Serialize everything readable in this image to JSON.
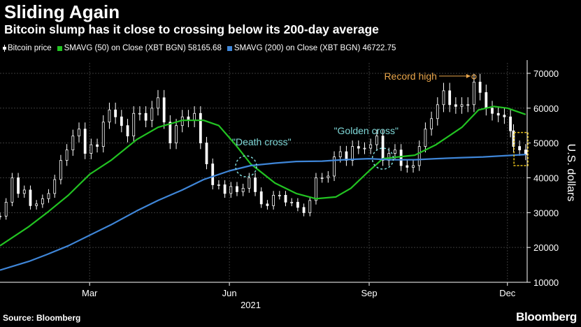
{
  "header": {
    "title": "Sliding Again",
    "subtitle": "Bitcoin slump has it close to crossing below its 200-day average"
  },
  "legend": {
    "items": [
      {
        "label": "Bitcoin price",
        "color": "#ffffff"
      },
      {
        "label": "SMAVG (50)  on Close (XBT BGN) 58165.68",
        "color": "#22c322"
      },
      {
        "label": "SMAVG (200)  on Close (XBT BGN) 46722.75",
        "color": "#3f86d8"
      }
    ]
  },
  "footer": {
    "source": "Source: Bloomberg",
    "brand": "Bloomberg"
  },
  "chart_data": {
    "type": "line",
    "title": "Sliding Again",
    "subtitle": "Bitcoin slump has it close to crossing below its 200-day average",
    "ylabel": "U.S. dollars",
    "xlabel": "",
    "ylim": [
      10000,
      73000
    ],
    "yticks": [
      10000,
      20000,
      30000,
      40000,
      50000,
      60000,
      70000
    ],
    "y_tick_labels": [
      "10000",
      "20000",
      "30000",
      "40000",
      "50000",
      "60000",
      "70000"
    ],
    "x_range": [
      "2021-01-01",
      "2021-12-14"
    ],
    "x_ticks": [
      {
        "date": "2021-03-01",
        "label": "Mar"
      },
      {
        "date": "2021-06-01",
        "label": "Jun"
      },
      {
        "date": "2021-09-01",
        "label": "Sep"
      },
      {
        "date": "2021-12-01",
        "label": "Dec"
      }
    ],
    "year_label": "2021",
    "grid": true,
    "legend_position": "top",
    "series": [
      {
        "name": "Bitcoin price",
        "style": "candlestick",
        "color": "#ffffff",
        "points": [
          [
            "2021-01-01",
            29000
          ],
          [
            "2021-01-05",
            33000
          ],
          [
            "2021-01-09",
            40000
          ],
          [
            "2021-01-13",
            35500
          ],
          [
            "2021-01-17",
            36500
          ],
          [
            "2021-01-21",
            32000
          ],
          [
            "2021-01-25",
            32500
          ],
          [
            "2021-01-29",
            34000
          ],
          [
            "2021-02-02",
            35500
          ],
          [
            "2021-02-06",
            39500
          ],
          [
            "2021-02-10",
            45000
          ],
          [
            "2021-02-14",
            48000
          ],
          [
            "2021-02-18",
            52000
          ],
          [
            "2021-02-22",
            54000
          ],
          [
            "2021-02-26",
            47000
          ],
          [
            "2021-03-02",
            49500
          ],
          [
            "2021-03-06",
            49000
          ],
          [
            "2021-03-10",
            56000
          ],
          [
            "2021-03-14",
            59500
          ],
          [
            "2021-03-18",
            57500
          ],
          [
            "2021-03-22",
            55000
          ],
          [
            "2021-03-26",
            52000
          ],
          [
            "2021-03-30",
            58500
          ],
          [
            "2021-04-03",
            58500
          ],
          [
            "2021-04-07",
            56500
          ],
          [
            "2021-04-11",
            60000
          ],
          [
            "2021-04-15",
            63000
          ],
          [
            "2021-04-19",
            56000
          ],
          [
            "2021-04-23",
            50000
          ],
          [
            "2021-04-27",
            55000
          ],
          [
            "2021-05-01",
            57500
          ],
          [
            "2021-05-05",
            56500
          ],
          [
            "2021-05-09",
            58500
          ],
          [
            "2021-05-13",
            50000
          ],
          [
            "2021-05-17",
            44000
          ],
          [
            "2021-05-21",
            38000
          ],
          [
            "2021-05-25",
            38000
          ],
          [
            "2021-05-29",
            35500
          ],
          [
            "2021-06-02",
            37500
          ],
          [
            "2021-06-06",
            36000
          ],
          [
            "2021-06-10",
            37000
          ],
          [
            "2021-06-14",
            40000
          ],
          [
            "2021-06-18",
            36000
          ],
          [
            "2021-06-22",
            32500
          ],
          [
            "2021-06-26",
            32000
          ],
          [
            "2021-06-30",
            35000
          ],
          [
            "2021-07-04",
            35000
          ],
          [
            "2021-07-08",
            33000
          ],
          [
            "2021-07-12",
            33000
          ],
          [
            "2021-07-16",
            31500
          ],
          [
            "2021-07-20",
            30000
          ],
          [
            "2021-07-24",
            33500
          ],
          [
            "2021-07-28",
            40000
          ],
          [
            "2021-08-01",
            40000
          ],
          [
            "2021-08-05",
            40500
          ],
          [
            "2021-08-09",
            46000
          ],
          [
            "2021-08-13",
            47500
          ],
          [
            "2021-08-17",
            45000
          ],
          [
            "2021-08-21",
            49000
          ],
          [
            "2021-08-25",
            48500
          ],
          [
            "2021-08-29",
            48500
          ],
          [
            "2021-09-02",
            49500
          ],
          [
            "2021-09-06",
            52000
          ],
          [
            "2021-09-10",
            45000
          ],
          [
            "2021-09-14",
            47000
          ],
          [
            "2021-09-18",
            48000
          ],
          [
            "2021-09-22",
            43500
          ],
          [
            "2021-09-26",
            43000
          ],
          [
            "2021-09-30",
            43500
          ],
          [
            "2021-10-04",
            49000
          ],
          [
            "2021-10-08",
            54000
          ],
          [
            "2021-10-12",
            57000
          ],
          [
            "2021-10-16",
            61000
          ],
          [
            "2021-10-20",
            65000
          ],
          [
            "2021-10-24",
            61000
          ],
          [
            "2021-10-28",
            60500
          ],
          [
            "2021-11-01",
            61000
          ],
          [
            "2021-11-05",
            61000
          ],
          [
            "2021-11-09",
            67500
          ],
          [
            "2021-11-13",
            64500
          ],
          [
            "2021-11-17",
            60000
          ],
          [
            "2021-11-21",
            58500
          ],
          [
            "2021-11-25",
            58000
          ],
          [
            "2021-11-29",
            57500
          ],
          [
            "2021-12-03",
            53500
          ],
          [
            "2021-12-05",
            49000
          ],
          [
            "2021-12-09",
            48000
          ],
          [
            "2021-12-13",
            46700
          ]
        ]
      },
      {
        "name": "SMAVG (50)  on Close (XBT BGN) 58165.68",
        "style": "line",
        "color": "#22c322",
        "points": [
          [
            "2021-01-01",
            20500
          ],
          [
            "2021-01-20",
            26000
          ],
          [
            "2021-02-01",
            30000
          ],
          [
            "2021-02-15",
            35000
          ],
          [
            "2021-03-01",
            41000
          ],
          [
            "2021-03-15",
            45000
          ],
          [
            "2021-04-01",
            51000
          ],
          [
            "2021-04-15",
            54500
          ],
          [
            "2021-05-01",
            56500
          ],
          [
            "2021-05-15",
            56500
          ],
          [
            "2021-05-25",
            55000
          ],
          [
            "2021-06-05",
            49500
          ],
          [
            "2021-06-15",
            44000
          ],
          [
            "2021-07-01",
            38500
          ],
          [
            "2021-07-15",
            35500
          ],
          [
            "2021-07-28",
            34000
          ],
          [
            "2021-08-10",
            34500
          ],
          [
            "2021-08-20",
            37000
          ],
          [
            "2021-09-01",
            42000
          ],
          [
            "2021-09-10",
            45500
          ],
          [
            "2021-09-20",
            46000
          ],
          [
            "2021-10-01",
            46500
          ],
          [
            "2021-10-15",
            49500
          ],
          [
            "2021-11-01",
            54500
          ],
          [
            "2021-11-12",
            59500
          ],
          [
            "2021-11-22",
            60500
          ],
          [
            "2021-12-01",
            60000
          ],
          [
            "2021-12-13",
            58200
          ]
        ]
      },
      {
        "name": "SMAVG (200)  on Close (XBT BGN) 46722.75",
        "style": "line",
        "color": "#3f86d8",
        "points": [
          [
            "2021-01-01",
            13500
          ],
          [
            "2021-01-20",
            16000
          ],
          [
            "2021-02-01",
            18000
          ],
          [
            "2021-02-15",
            20500
          ],
          [
            "2021-03-01",
            23500
          ],
          [
            "2021-03-15",
            26500
          ],
          [
            "2021-04-01",
            30500
          ],
          [
            "2021-04-15",
            33500
          ],
          [
            "2021-05-01",
            36500
          ],
          [
            "2021-05-15",
            39500
          ],
          [
            "2021-06-01",
            42000
          ],
          [
            "2021-06-15",
            43500
          ],
          [
            "2021-07-01",
            44200
          ],
          [
            "2021-07-15",
            44700
          ],
          [
            "2021-08-01",
            44800
          ],
          [
            "2021-08-15",
            45200
          ],
          [
            "2021-09-01",
            45500
          ],
          [
            "2021-09-15",
            45200
          ],
          [
            "2021-10-01",
            45200
          ],
          [
            "2021-10-15",
            45500
          ],
          [
            "2021-11-01",
            45800
          ],
          [
            "2021-11-15",
            46000
          ],
          [
            "2021-12-01",
            46400
          ],
          [
            "2021-12-13",
            46700
          ]
        ]
      }
    ],
    "annotations": [
      {
        "text": "\"Death cross\"",
        "date": "2021-06-12",
        "value": 43300,
        "marker": "dashed-circle",
        "color": "#7fd8d8"
      },
      {
        "text": "\"Golden cross\"",
        "date": "2021-09-10",
        "value": 45500,
        "marker": "dashed-circle",
        "color": "#7fd8d8"
      },
      {
        "text": "Record high",
        "date": "2021-11-09",
        "value": 69000,
        "marker": "arrow-dot",
        "color": "#e9a64b"
      },
      {
        "text": "",
        "date": "2021-12-09",
        "value": 48000,
        "marker": "dashed-box",
        "color": "#e8c21a",
        "range": [
          43500,
          53000
        ]
      }
    ]
  }
}
